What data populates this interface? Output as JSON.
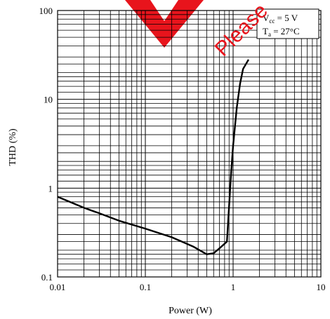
{
  "chart_data": {
    "type": "line",
    "x_scale": "log",
    "y_scale": "log",
    "xlim": [
      0.01,
      10
    ],
    "ylim": [
      0.1,
      100
    ],
    "xlabel": "Power  (W)",
    "ylabel": "THD  (%)",
    "x_ticks": [
      "0.01",
      "0.1",
      "1",
      "10"
    ],
    "y_ticks": [
      "0.1",
      "1",
      "10",
      "100"
    ],
    "grid": true,
    "legend_placement": "top-right",
    "conditions": [
      {
        "symbol": "V",
        "subscript": "cc",
        "text": " = 5 V"
      },
      {
        "symbol": "T",
        "subscript": "a",
        "text": " = 27°C"
      }
    ],
    "series": [
      {
        "x": [
          0.01,
          0.02,
          0.03,
          0.05,
          0.1,
          0.2,
          0.35,
          0.5,
          0.6,
          0.7,
          0.85,
          0.95,
          1.0,
          1.1,
          1.2,
          1.3,
          1.4,
          1.5
        ],
        "y": [
          0.8,
          0.6,
          0.52,
          0.43,
          0.35,
          0.28,
          0.22,
          0.18,
          0.185,
          0.21,
          0.25,
          1.5,
          3,
          8,
          15,
          22,
          25,
          28
        ]
      }
    ],
    "line_color": "#000000",
    "watermark": "Please",
    "watermark_color": "#e8141c"
  }
}
